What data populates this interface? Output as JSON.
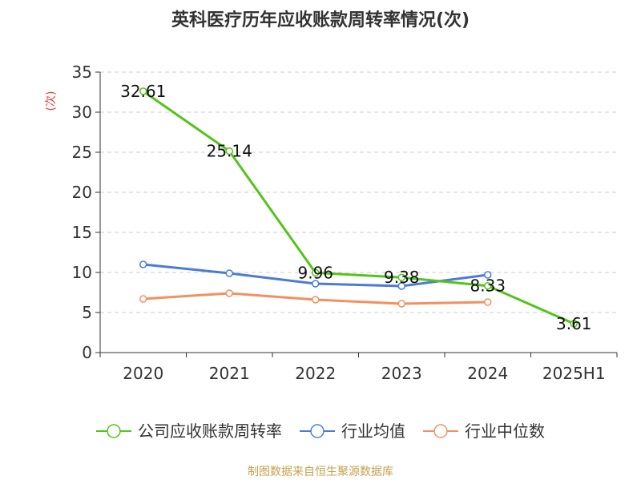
{
  "chart_data": {
    "type": "line",
    "title": "英科医疗历年应收账款周转率情况(次)",
    "ylabel": "(次)",
    "categories": [
      "2020",
      "2021",
      "2022",
      "2023",
      "2024",
      "2025H1"
    ],
    "ylim": [
      0,
      35
    ],
    "yticks": [
      0,
      5,
      10,
      15,
      20,
      25,
      30,
      35
    ],
    "grid": true,
    "legend_position": "bottom",
    "series": [
      {
        "name": "公司应收账款周转率",
        "color": "#52c41a",
        "values": [
          32.61,
          25.14,
          9.96,
          9.38,
          8.33,
          3.61
        ],
        "labels": [
          "32.61",
          "25.14",
          "9.96",
          "9.38",
          "8.33",
          "3.61"
        ]
      },
      {
        "name": "行业均值",
        "color": "#4a7bd9",
        "values": [
          11.0,
          9.9,
          8.6,
          8.3,
          9.7,
          null
        ]
      },
      {
        "name": "行业中位数",
        "color": "#f4905f",
        "values": [
          6.7,
          7.4,
          6.6,
          6.1,
          6.3,
          null
        ]
      }
    ]
  },
  "footer": "制图数据来自恒生聚源数据库"
}
